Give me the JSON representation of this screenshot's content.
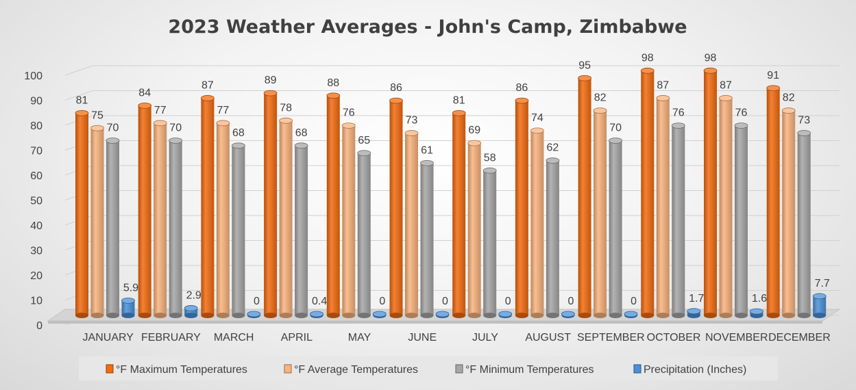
{
  "chart_data": {
    "type": "bar",
    "title": "2023 Weather Averages - John's Camp, Zimbabwe",
    "xlabel": "",
    "ylabel": "",
    "ylim": [
      0,
      100
    ],
    "yticks": [
      0,
      10,
      20,
      30,
      40,
      50,
      60,
      70,
      80,
      90,
      100
    ],
    "grid": true,
    "legend_position": "bottom",
    "categories": [
      "JANUARY",
      "FEBRUARY",
      "MARCH",
      "APRIL",
      "MAY",
      "JUNE",
      "JULY",
      "AUGUST",
      "SEPTEMBER",
      "OCTOBER",
      "NOVEMBER",
      "DECEMBER"
    ],
    "series": [
      {
        "name": "°F Maximum Temperatures",
        "color": "#f26b0f",
        "values": [
          81,
          84,
          87,
          89,
          88,
          86,
          81,
          86,
          95,
          98,
          98,
          91
        ],
        "labels": [
          "81",
          "84",
          "87",
          "89",
          "88",
          "86",
          "81",
          "86",
          "95",
          "98",
          "98",
          "91"
        ]
      },
      {
        "name": "°F Average Temperatures",
        "color": "#f9b37c",
        "values": [
          75,
          77,
          77,
          78,
          76,
          73,
          69,
          74,
          82,
          87,
          87,
          82
        ],
        "labels": [
          "75",
          "77",
          "77",
          "78",
          "76",
          "73",
          "69",
          "74",
          "82",
          "87",
          "87",
          "82"
        ]
      },
      {
        "name": "°F Minimum Temperatures",
        "color": "#a6a6a6",
        "values": [
          70,
          70,
          68,
          68,
          65,
          61,
          58,
          62,
          70,
          76,
          76,
          73
        ],
        "labels": [
          "70",
          "70",
          "68",
          "68",
          "65",
          "61",
          "58",
          "62",
          "70",
          "76",
          "76",
          "73"
        ]
      },
      {
        "name": "Precipitation (Inches)",
        "color": "#4a90d9",
        "values": [
          5.9,
          2.9,
          0,
          0.4,
          0,
          0,
          0,
          0,
          0,
          1.7,
          1.6,
          7.7
        ],
        "labels": [
          "5.9",
          "2.9",
          "0",
          "0.4",
          "0",
          "0",
          "0",
          "0",
          "0",
          "1.7",
          "1.6",
          "7.7"
        ]
      }
    ]
  }
}
